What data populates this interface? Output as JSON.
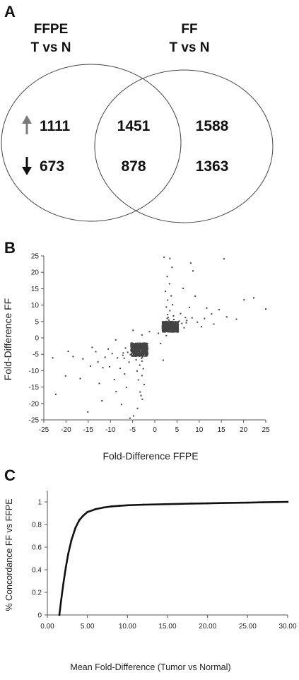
{
  "panels": {
    "a": "A",
    "b": "B",
    "c": "C"
  },
  "venn": {
    "left_title_line1": "FFPE",
    "left_title_line2": "T vs N",
    "right_title_line1": "FF",
    "right_title_line2": "T vs N",
    "up_arrow_color": "#7a7a7a",
    "down_arrow_color": "#111111",
    "left_only_up": "1111",
    "left_only_down": "673",
    "overlap_up": "1451",
    "overlap_down": "878",
    "right_only_up": "1588",
    "right_only_down": "1363"
  },
  "chart_data": [
    {
      "type": "venn",
      "sets": [
        "FFPE T vs N",
        "FF T vs N"
      ],
      "regions": {
        "FFPE_only": {
          "up": 1111,
          "down": 673
        },
        "both": {
          "up": 1451,
          "down": 878
        },
        "FF_only": {
          "up": 1588,
          "down": 1363
        }
      }
    },
    {
      "type": "scatter",
      "xlabel": "Fold-Difference FFPE",
      "ylabel": "Fold-Difference FF",
      "xlim": [
        -25,
        25
      ],
      "ylim": [
        -25,
        25
      ],
      "xticks": [
        "-25",
        "-20",
        "-15",
        "-10",
        "-5",
        "0",
        "5",
        "10",
        "15",
        "20",
        "25"
      ],
      "yticks": [
        "25",
        "20",
        "15",
        "10",
        "5",
        "0",
        "-5",
        "-10",
        "-15",
        "-20",
        "-25"
      ],
      "grid": false,
      "point_color": "#444444",
      "points": [
        [
          2.3,
          3.1
        ],
        [
          2.8,
          2.4
        ],
        [
          3.5,
          4.2
        ],
        [
          4.1,
          2.9
        ],
        [
          2.6,
          5.0
        ],
        [
          3.0,
          6.2
        ],
        [
          5.2,
          3.8
        ],
        [
          2.4,
          2.2
        ],
        [
          3.8,
          3.3
        ],
        [
          4.6,
          4.9
        ],
        [
          2.9,
          7.1
        ],
        [
          3.2,
          2.6
        ],
        [
          6.1,
          4.4
        ],
        [
          2.5,
          3.7
        ],
        [
          4.3,
          5.6
        ],
        [
          3.6,
          2.3
        ],
        [
          2.7,
          4.6
        ],
        [
          5.5,
          5.1
        ],
        [
          3.1,
          3.0
        ],
        [
          2.2,
          2.8
        ],
        [
          4.8,
          3.2
        ],
        [
          3.4,
          8.3
        ],
        [
          2.6,
          9.4
        ],
        [
          7.2,
          5.3
        ],
        [
          2.9,
          11.5
        ],
        [
          3.7,
          12.8
        ],
        [
          2.4,
          14.2
        ],
        [
          3.3,
          16.5
        ],
        [
          2.8,
          18.7
        ],
        [
          4.0,
          10.1
        ],
        [
          5.8,
          7.4
        ],
        [
          8.4,
          6.1
        ],
        [
          9.6,
          4.8
        ],
        [
          11.2,
          5.9
        ],
        [
          12.8,
          7.3
        ],
        [
          14.5,
          8.6
        ],
        [
          16.2,
          6.4
        ],
        [
          18.4,
          5.7
        ],
        [
          20.1,
          11.6
        ],
        [
          22.3,
          12.2
        ],
        [
          25.0,
          8.8
        ],
        [
          10.5,
          3.4
        ],
        [
          13.3,
          4.2
        ],
        [
          7.8,
          9.3
        ],
        [
          9.1,
          12.7
        ],
        [
          6.4,
          15.1
        ],
        [
          3.9,
          21.5
        ],
        [
          8.1,
          22.8
        ],
        [
          8.6,
          20.4
        ],
        [
          2.1,
          24.6
        ],
        [
          3.4,
          24.2
        ],
        [
          15.6,
          24.1
        ],
        [
          2.3,
          3.5
        ],
        [
          3.6,
          4.8
        ],
        [
          4.4,
          3.9
        ],
        [
          2.5,
          2.7
        ],
        [
          3.2,
          5.4
        ],
        [
          5.0,
          2.6
        ],
        [
          2.7,
          3.3
        ],
        [
          3.9,
          2.8
        ],
        [
          4.2,
          6.7
        ],
        [
          6.6,
          3.1
        ],
        [
          2.4,
          4.4
        ],
        [
          5.3,
          4.1
        ],
        [
          3.5,
          3.6
        ],
        [
          7.1,
          4.6
        ],
        [
          2.8,
          5.9
        ],
        [
          4.7,
          2.4
        ],
        [
          6.9,
          6.2
        ],
        [
          11.7,
          9.1
        ],
        [
          -2.3,
          -3.1
        ],
        [
          -2.8,
          -2.4
        ],
        [
          -3.5,
          -4.2
        ],
        [
          -4.1,
          -2.9
        ],
        [
          -2.6,
          -5.0
        ],
        [
          -3.0,
          -6.2
        ],
        [
          -5.2,
          -3.8
        ],
        [
          -2.4,
          -2.2
        ],
        [
          -3.8,
          -3.3
        ],
        [
          -4.6,
          -4.9
        ],
        [
          -2.9,
          -7.1
        ],
        [
          -3.2,
          -2.6
        ],
        [
          -6.1,
          -4.4
        ],
        [
          -2.5,
          -3.7
        ],
        [
          -4.3,
          -5.6
        ],
        [
          -3.6,
          -2.3
        ],
        [
          -2.7,
          -4.6
        ],
        [
          -5.5,
          -5.1
        ],
        [
          -3.1,
          -3.0
        ],
        [
          -2.2,
          -2.8
        ],
        [
          -4.8,
          -3.2
        ],
        [
          -3.4,
          -8.3
        ],
        [
          -2.6,
          -9.4
        ],
        [
          -7.2,
          -5.3
        ],
        [
          -2.9,
          -11.5
        ],
        [
          -3.7,
          -12.8
        ],
        [
          -2.4,
          -14.2
        ],
        [
          -3.3,
          -16.5
        ],
        [
          -2.8,
          -18.7
        ],
        [
          -4.0,
          -10.1
        ],
        [
          -5.8,
          -7.4
        ],
        [
          -8.4,
          -6.1
        ],
        [
          -9.6,
          -4.8
        ],
        [
          -11.2,
          -5.9
        ],
        [
          -12.8,
          -7.3
        ],
        [
          -14.5,
          -8.6
        ],
        [
          -16.2,
          -6.4
        ],
        [
          -18.4,
          -5.7
        ],
        [
          -20.1,
          -11.6
        ],
        [
          -22.3,
          -17.2
        ],
        [
          -15.1,
          -22.6
        ],
        [
          -10.5,
          -3.4
        ],
        [
          -13.3,
          -4.2
        ],
        [
          -7.8,
          -9.3
        ],
        [
          -9.1,
          -12.7
        ],
        [
          -6.4,
          -15.1
        ],
        [
          -3.9,
          -21.5
        ],
        [
          -5.6,
          -24.5
        ],
        [
          -4.8,
          -23.8
        ],
        [
          -23.0,
          -6.1
        ],
        [
          -16.8,
          -12.4
        ],
        [
          -11.9,
          -19.2
        ],
        [
          -8.7,
          -16.4
        ],
        [
          -14.1,
          -2.9
        ],
        [
          -19.5,
          -4.1
        ],
        [
          -6.8,
          -11.0
        ],
        [
          -10.2,
          -8.8
        ],
        [
          -12.5,
          -13.9
        ],
        [
          -7.5,
          -20.3
        ],
        [
          -3.1,
          -17.6
        ],
        [
          -2.3,
          -3.5
        ],
        [
          -3.6,
          -4.8
        ],
        [
          -4.4,
          -3.9
        ],
        [
          -2.5,
          -2.7
        ],
        [
          -3.2,
          -5.4
        ],
        [
          -5.0,
          -2.6
        ],
        [
          -2.7,
          -3.3
        ],
        [
          -3.9,
          -2.8
        ],
        [
          -4.2,
          -6.7
        ],
        [
          -6.6,
          -3.1
        ],
        [
          -2.4,
          -4.4
        ],
        [
          -5.3,
          -4.1
        ],
        [
          -3.5,
          -3.6
        ],
        [
          -7.1,
          -4.6
        ],
        [
          -2.8,
          -5.9
        ],
        [
          -4.7,
          -2.4
        ],
        [
          -6.9,
          -6.2
        ],
        [
          -11.7,
          -9.1
        ],
        [
          -1.8,
          -2.1
        ],
        [
          -1.6,
          -3.4
        ],
        [
          -4.9,
          2.3
        ],
        [
          -8.8,
          -0.6
        ],
        [
          1.9,
          -6.8
        ],
        [
          0.8,
          1.4
        ],
        [
          -1.2,
          1.9
        ],
        [
          2.6,
          0.7
        ],
        [
          -2.9,
          0.9
        ],
        [
          1.3,
          -1.7
        ]
      ]
    },
    {
      "type": "line",
      "xlabel": "Mean Fold-Difference (Tumor vs Normal)",
      "ylabel": "% Concordance FF vs FFPE",
      "xlim": [
        0,
        30
      ],
      "ylim": [
        0,
        1.1
      ],
      "xticks": [
        "0.00",
        "5.00",
        "10.00",
        "15.00",
        "20.00",
        "25.00",
        "30.00"
      ],
      "yticks": [
        "0",
        "0.2",
        "0.4",
        "0.6",
        "0.8",
        "1"
      ],
      "grid": false,
      "series": [
        {
          "x": [
            1.5,
            1.7,
            2.0,
            2.3,
            2.6,
            3.0,
            3.5,
            4.0,
            4.5,
            5.0,
            6.0,
            7.0,
            8.0,
            9.0,
            10.0,
            12.0,
            15.0,
            18.0,
            20.0,
            22.0,
            25.0,
            27.0,
            30.0
          ],
          "y": [
            0.0,
            0.12,
            0.28,
            0.42,
            0.54,
            0.66,
            0.77,
            0.84,
            0.88,
            0.91,
            0.935,
            0.95,
            0.96,
            0.965,
            0.97,
            0.975,
            0.98,
            0.985,
            0.987,
            0.99,
            0.993,
            0.996,
            1.0
          ]
        }
      ]
    }
  ]
}
